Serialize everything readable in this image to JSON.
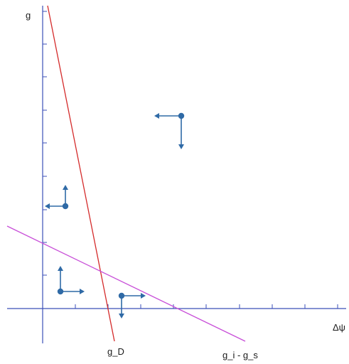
{
  "labels": {
    "y_axis": "g",
    "x_axis": "Δψ",
    "line_red": "g_D",
    "line_magenta": "g_i - g_s"
  },
  "colors": {
    "axis": "#3b4fb8",
    "line_red": "#d42a2a",
    "line_magenta": "#c84fd8",
    "marker": "#2f6aa6",
    "text": "#1a1a1a"
  }
}
